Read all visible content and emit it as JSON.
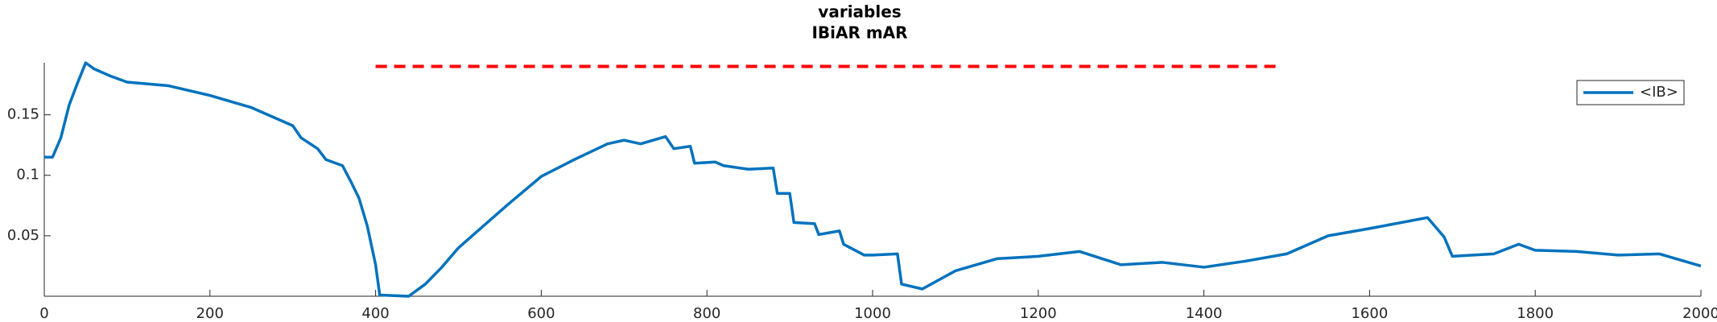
{
  "chart_data": {
    "type": "line",
    "title": [
      "variables",
      "IBiAR mAR"
    ],
    "xlim": [
      0,
      2000
    ],
    "xticks": [
      0,
      200,
      400,
      600,
      800,
      1000,
      1200,
      1400,
      1600,
      1800,
      2000
    ],
    "ylim": [
      0,
      0.193
    ],
    "yticks": [
      {
        "value": 0.05,
        "label": "0.05"
      },
      {
        "value": 0.1,
        "label": "0.1"
      },
      {
        "value": 0.15,
        "label": "0.15"
      }
    ],
    "legend": "upper right",
    "series": [
      {
        "name": "<IB>",
        "color": "#0072bd",
        "style": "solid",
        "x": [
          0,
          10,
          20,
          30,
          40,
          50,
          60,
          80,
          100,
          150,
          200,
          250,
          300,
          310,
          330,
          340,
          360,
          370,
          380,
          390,
          400,
          405,
          440,
          460,
          480,
          500,
          530,
          560,
          600,
          640,
          680,
          700,
          720,
          750,
          760,
          780,
          785,
          810,
          820,
          850,
          880,
          885,
          900,
          905,
          930,
          935,
          960,
          965,
          990,
          1000,
          1030,
          1035,
          1060,
          1100,
          1150,
          1200,
          1250,
          1300,
          1350,
          1400,
          1450,
          1500,
          1550,
          1600,
          1670,
          1690,
          1700,
          1750,
          1780,
          1800,
          1850,
          1900,
          1950,
          2000
        ],
        "values": [
          0.115,
          0.115,
          0.131,
          0.158,
          0.176,
          0.193,
          0.188,
          0.182,
          0.177,
          0.174,
          0.166,
          0.156,
          0.141,
          0.131,
          0.122,
          0.113,
          0.108,
          0.095,
          0.081,
          0.058,
          0.026,
          0.001,
          0,
          0.01,
          0.024,
          0.04,
          0.058,
          0.076,
          0.099,
          0.113,
          0.126,
          0.129,
          0.126,
          0.132,
          0.122,
          0.124,
          0.11,
          0.111,
          0.108,
          0.105,
          0.106,
          0.085,
          0.085,
          0.061,
          0.06,
          0.051,
          0.054,
          0.043,
          0.034,
          0.034,
          0.035,
          0.01,
          0.006,
          0.021,
          0.031,
          0.033,
          0.037,
          0.026,
          0.028,
          0.024,
          0.029,
          0.035,
          0.05,
          0.056,
          0.065,
          0.049,
          0.033,
          0.035,
          0.043,
          0.038,
          0.037,
          0.034,
          0.035,
          0.025
        ]
      },
      {
        "color": "#ff0000",
        "style": "dashed",
        "x": [
          400,
          1490
        ],
        "values": [
          0.19,
          0.19
        ]
      }
    ]
  }
}
